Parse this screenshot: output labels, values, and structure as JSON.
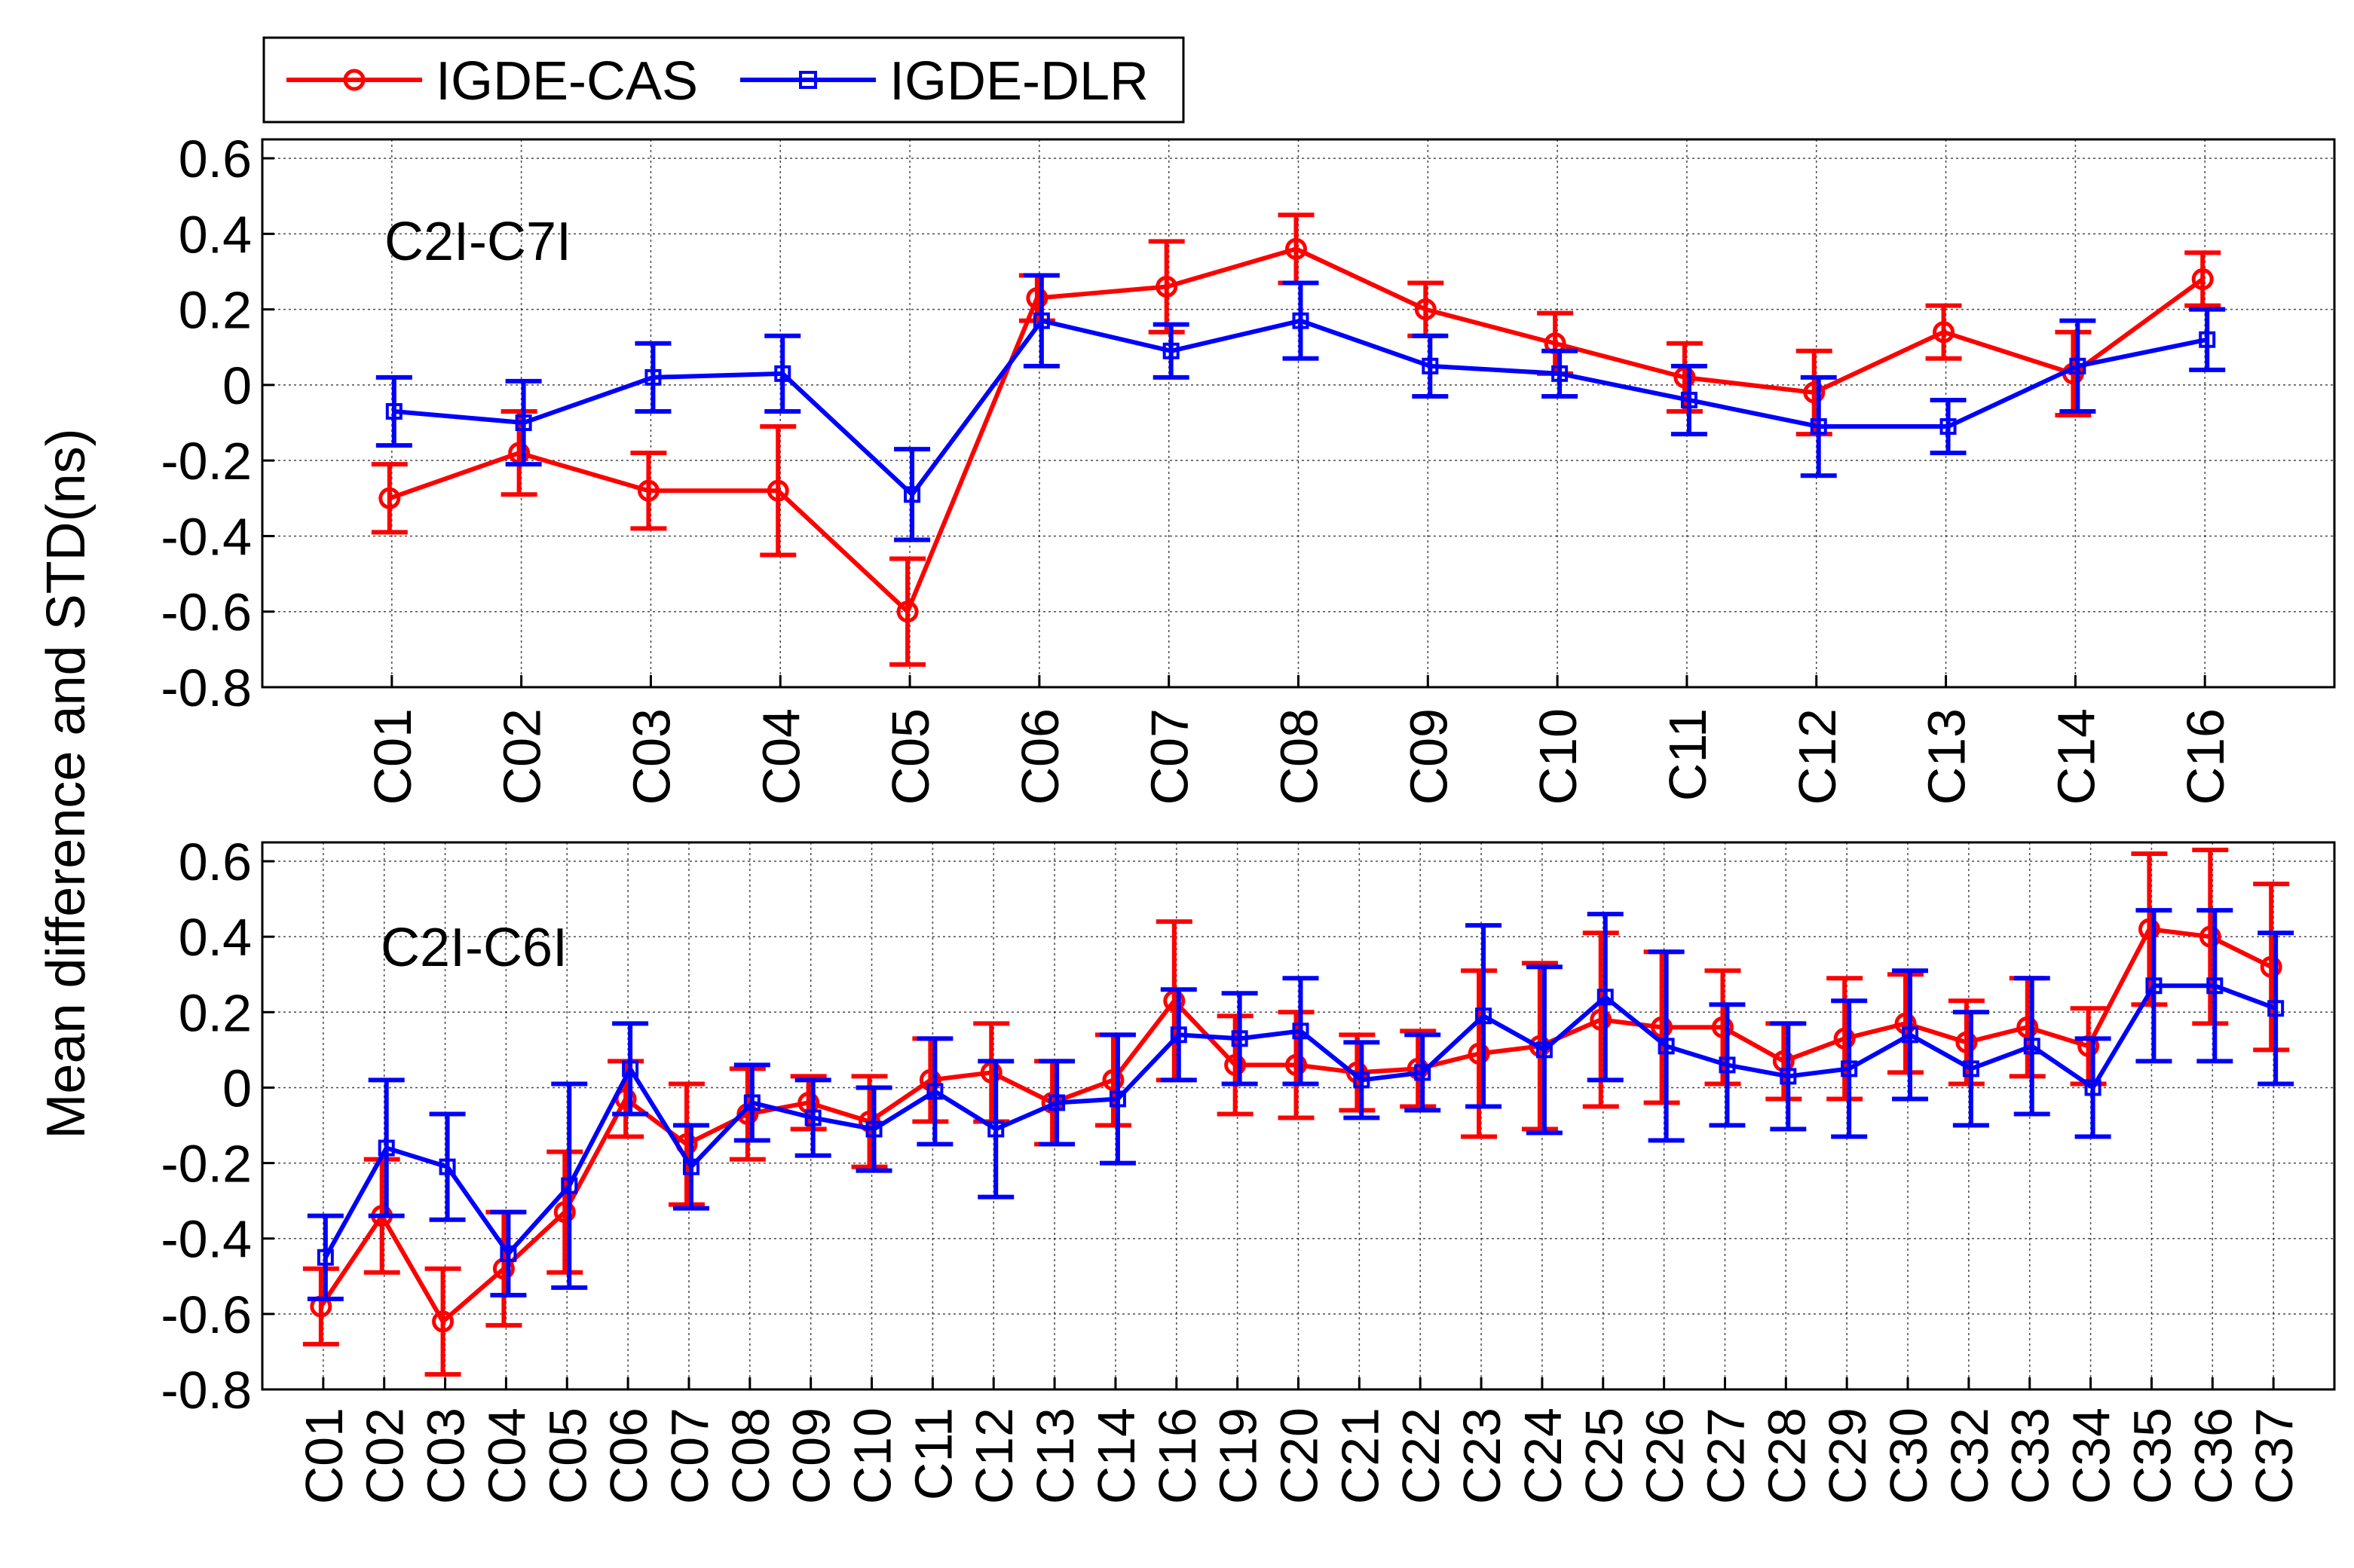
{
  "ylabel": "Mean difference and STD(ns)",
  "colors": {
    "cas": "#ff0000",
    "dlr": "#0000ff",
    "axis": "#000000",
    "grid": "#000000"
  },
  "legend": {
    "items": [
      {
        "label": "IGDE-CAS",
        "color": "#ff0000",
        "marker": "circle"
      },
      {
        "label": "IGDE-DLR",
        "color": "#0000ff",
        "marker": "square"
      }
    ]
  },
  "chart_data": [
    {
      "type": "line",
      "annotation": "C2I-C7I",
      "ylim": [
        -0.8,
        0.65
      ],
      "yticks": [
        "0.6",
        "0.4",
        "0.2",
        "0",
        "-0.2",
        "-0.4",
        "-0.6",
        "-0.8"
      ],
      "ytick_values": [
        0.6,
        0.4,
        0.2,
        0,
        -0.2,
        -0.4,
        -0.6,
        -0.8
      ],
      "grid": true,
      "categories": [
        "C01",
        "C02",
        "C03",
        "C04",
        "C05",
        "C06",
        "C07",
        "C08",
        "C09",
        "C10",
        "C11",
        "C12",
        "C13",
        "C14",
        "C16"
      ],
      "series": [
        {
          "name": "IGDE-CAS",
          "values": [
            -0.3,
            -0.18,
            -0.28,
            -0.28,
            -0.6,
            0.23,
            0.26,
            0.36,
            0.2,
            0.11,
            0.02,
            -0.02,
            0.14,
            0.03,
            0.28
          ],
          "errors": [
            0.09,
            0.11,
            0.1,
            0.17,
            0.14,
            0.06,
            0.12,
            0.09,
            0.07,
            0.08,
            0.09,
            0.11,
            0.07,
            0.11,
            0.07
          ]
        },
        {
          "name": "IGDE-DLR",
          "values": [
            -0.07,
            -0.1,
            0.02,
            0.03,
            -0.29,
            0.17,
            0.09,
            0.17,
            0.05,
            0.03,
            -0.04,
            -0.11,
            -0.11,
            0.05,
            0.12
          ],
          "errors": [
            0.09,
            0.11,
            0.09,
            0.1,
            0.12,
            0.12,
            0.07,
            0.1,
            0.08,
            0.06,
            0.09,
            0.13,
            0.07,
            0.12,
            0.08
          ]
        }
      ]
    },
    {
      "type": "line",
      "annotation": "C2I-C6I",
      "ylim": [
        -0.8,
        0.65
      ],
      "yticks": [
        "0.6",
        "0.4",
        "0.2",
        "0",
        "-0.2",
        "-0.4",
        "-0.6",
        "-0.8"
      ],
      "ytick_values": [
        0.6,
        0.4,
        0.2,
        0,
        -0.2,
        -0.4,
        -0.6,
        -0.8
      ],
      "grid": true,
      "categories": [
        "C01",
        "C02",
        "C03",
        "C04",
        "C05",
        "C06",
        "C07",
        "C08",
        "C09",
        "C10",
        "C11",
        "C12",
        "C13",
        "C14",
        "C16",
        "C19",
        "C20",
        "C21",
        "C22",
        "C23",
        "C24",
        "C25",
        "C26",
        "C27",
        "C28",
        "C29",
        "C30",
        "C32",
        "C33",
        "C34",
        "C35",
        "C36",
        "C37"
      ],
      "series": [
        {
          "name": "IGDE-CAS",
          "values": [
            -0.58,
            -0.34,
            -0.62,
            -0.48,
            -0.33,
            -0.03,
            -0.15,
            -0.07,
            -0.04,
            -0.09,
            0.02,
            0.04,
            -0.04,
            0.02,
            0.23,
            0.06,
            0.06,
            0.04,
            0.05,
            0.09,
            0.11,
            0.18,
            0.16,
            0.16,
            0.07,
            0.13,
            0.17,
            0.12,
            0.16,
            0.11,
            0.42,
            0.4,
            0.32
          ],
          "errors": [
            0.1,
            0.15,
            0.14,
            0.15,
            0.16,
            0.1,
            0.16,
            0.12,
            0.07,
            0.12,
            0.11,
            0.13,
            0.11,
            0.12,
            0.21,
            0.13,
            0.14,
            0.1,
            0.1,
            0.22,
            0.22,
            0.23,
            0.2,
            0.15,
            0.1,
            0.16,
            0.13,
            0.11,
            0.13,
            0.1,
            0.2,
            0.23,
            0.22
          ]
        },
        {
          "name": "IGDE-DLR",
          "values": [
            -0.45,
            -0.16,
            -0.21,
            -0.44,
            -0.26,
            0.05,
            -0.21,
            -0.04,
            -0.08,
            -0.11,
            -0.01,
            -0.11,
            -0.04,
            -0.03,
            0.14,
            0.13,
            0.15,
            0.02,
            0.04,
            0.19,
            0.1,
            0.24,
            0.11,
            0.06,
            0.03,
            0.05,
            0.14,
            0.05,
            0.11,
            0.0,
            0.27,
            0.27,
            0.21
          ],
          "errors": [
            0.11,
            0.18,
            0.14,
            0.11,
            0.27,
            0.12,
            0.11,
            0.1,
            0.1,
            0.11,
            0.14,
            0.18,
            0.11,
            0.17,
            0.12,
            0.12,
            0.14,
            0.1,
            0.1,
            0.24,
            0.22,
            0.22,
            0.25,
            0.16,
            0.14,
            0.18,
            0.17,
            0.15,
            0.18,
            0.13,
            0.2,
            0.2,
            0.2
          ]
        }
      ]
    }
  ]
}
